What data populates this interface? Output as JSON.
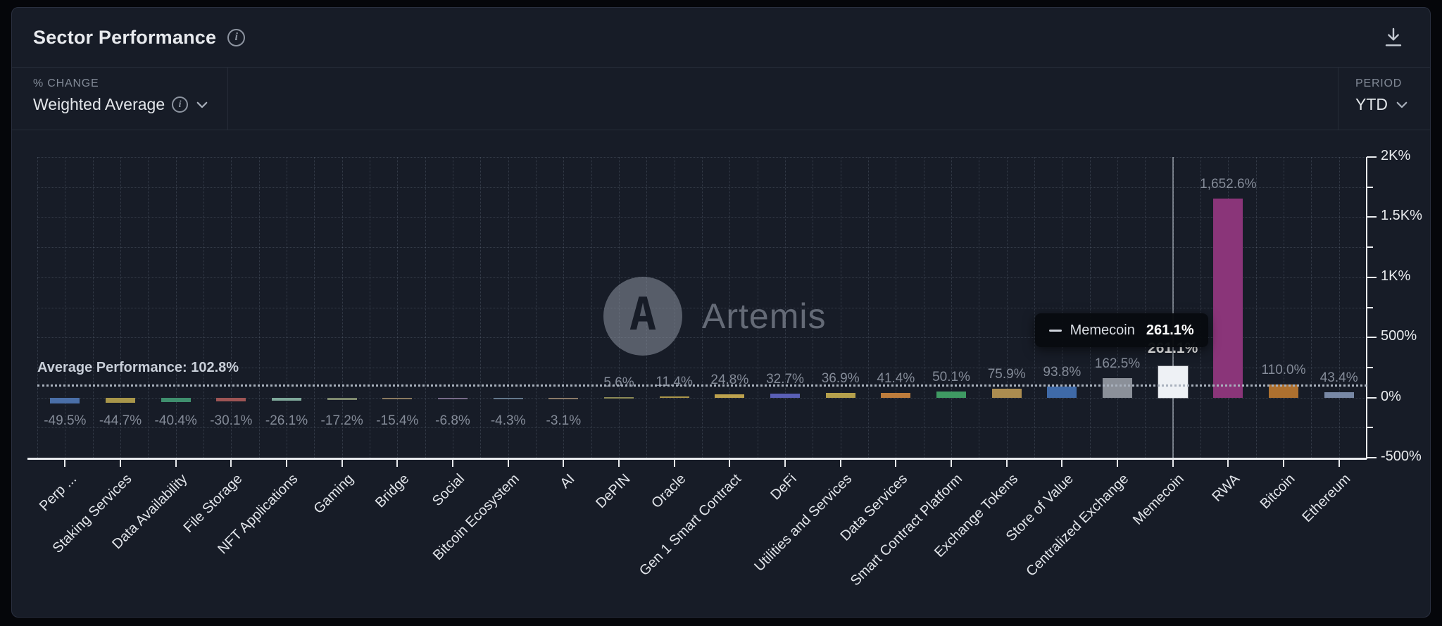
{
  "header": {
    "title": "Sector Performance"
  },
  "controls": {
    "metric_label": "% CHANGE",
    "metric_value": "Weighted Average",
    "period_label": "PERIOD",
    "period_value": "YTD"
  },
  "watermark": {
    "text": "Artemis"
  },
  "tooltip": {
    "series": "Memecoin",
    "value": "261.1%"
  },
  "chart_data": {
    "type": "bar",
    "title": "Sector Performance",
    "categories": [
      "Perp ...",
      "Staking Services",
      "Data Availability",
      "File Storage",
      "NFT Applications",
      "Gaming",
      "Bridge",
      "Social",
      "Bitcoin Ecosystem",
      "AI",
      "DePIN",
      "Oracle",
      "Gen 1 Smart Contract",
      "DeFi",
      "Utilities and Services",
      "Data Services",
      "Smart Contract Platform",
      "Exchange Tokens",
      "Store of Value",
      "Centralized Exchange",
      "Memecoin",
      "RWA",
      "Bitcoin",
      "Ethereum"
    ],
    "values": [
      -49.5,
      -44.7,
      -40.4,
      -30.1,
      -26.1,
      -17.2,
      -15.4,
      -6.8,
      -4.3,
      -3.1,
      5.6,
      11.4,
      24.8,
      32.7,
      36.9,
      41.4,
      50.1,
      75.9,
      93.8,
      162.5,
      261.1,
      1652.6,
      110.0,
      43.4
    ],
    "value_labels": [
      "-49.5%",
      "-44.7%",
      "-40.4%",
      "-30.1%",
      "-26.1%",
      "-17.2%",
      "-15.4%",
      "-6.8%",
      "-4.3%",
      "-3.1%",
      "5.6%",
      "11.4%",
      "24.8%",
      "32.7%",
      "36.9%",
      "41.4%",
      "50.1%",
      "75.9%",
      "93.8%",
      "162.5%",
      "261.1%",
      "1,652.6%",
      "110.0%",
      "43.4%"
    ],
    "colors": [
      "#4a6fa8",
      "#a8964a",
      "#3f8f6e",
      "#9e5555",
      "#7fa99b",
      "#7f8a6f",
      "#8a7a60",
      "#766a88",
      "#64788c",
      "#8a7a68",
      "#8c8a56",
      "#ab964a",
      "#bda24e",
      "#5a5fb5",
      "#b5a04c",
      "#bd7c3c",
      "#3f9a63",
      "#ab8c50",
      "#3f6aa8",
      "#8b9099",
      "#eef1f5",
      "#8a3579",
      "#ad702f",
      "#7888a5"
    ],
    "highlight_index": 20,
    "average": {
      "value": 102.8,
      "label": "Average Performance: 102.8%"
    },
    "y_axis": {
      "min": -500,
      "max": 2000,
      "ticks": [
        {
          "v": 2000,
          "label": "2K%"
        },
        {
          "v": 1500,
          "label": "1.5K%"
        },
        {
          "v": 1000,
          "label": "1K%"
        },
        {
          "v": 500,
          "label": "500%"
        },
        {
          "v": 0,
          "label": "0%"
        },
        {
          "v": -500,
          "label": "-500%"
        }
      ]
    },
    "grid": "dotted",
    "legend_position": "none"
  }
}
